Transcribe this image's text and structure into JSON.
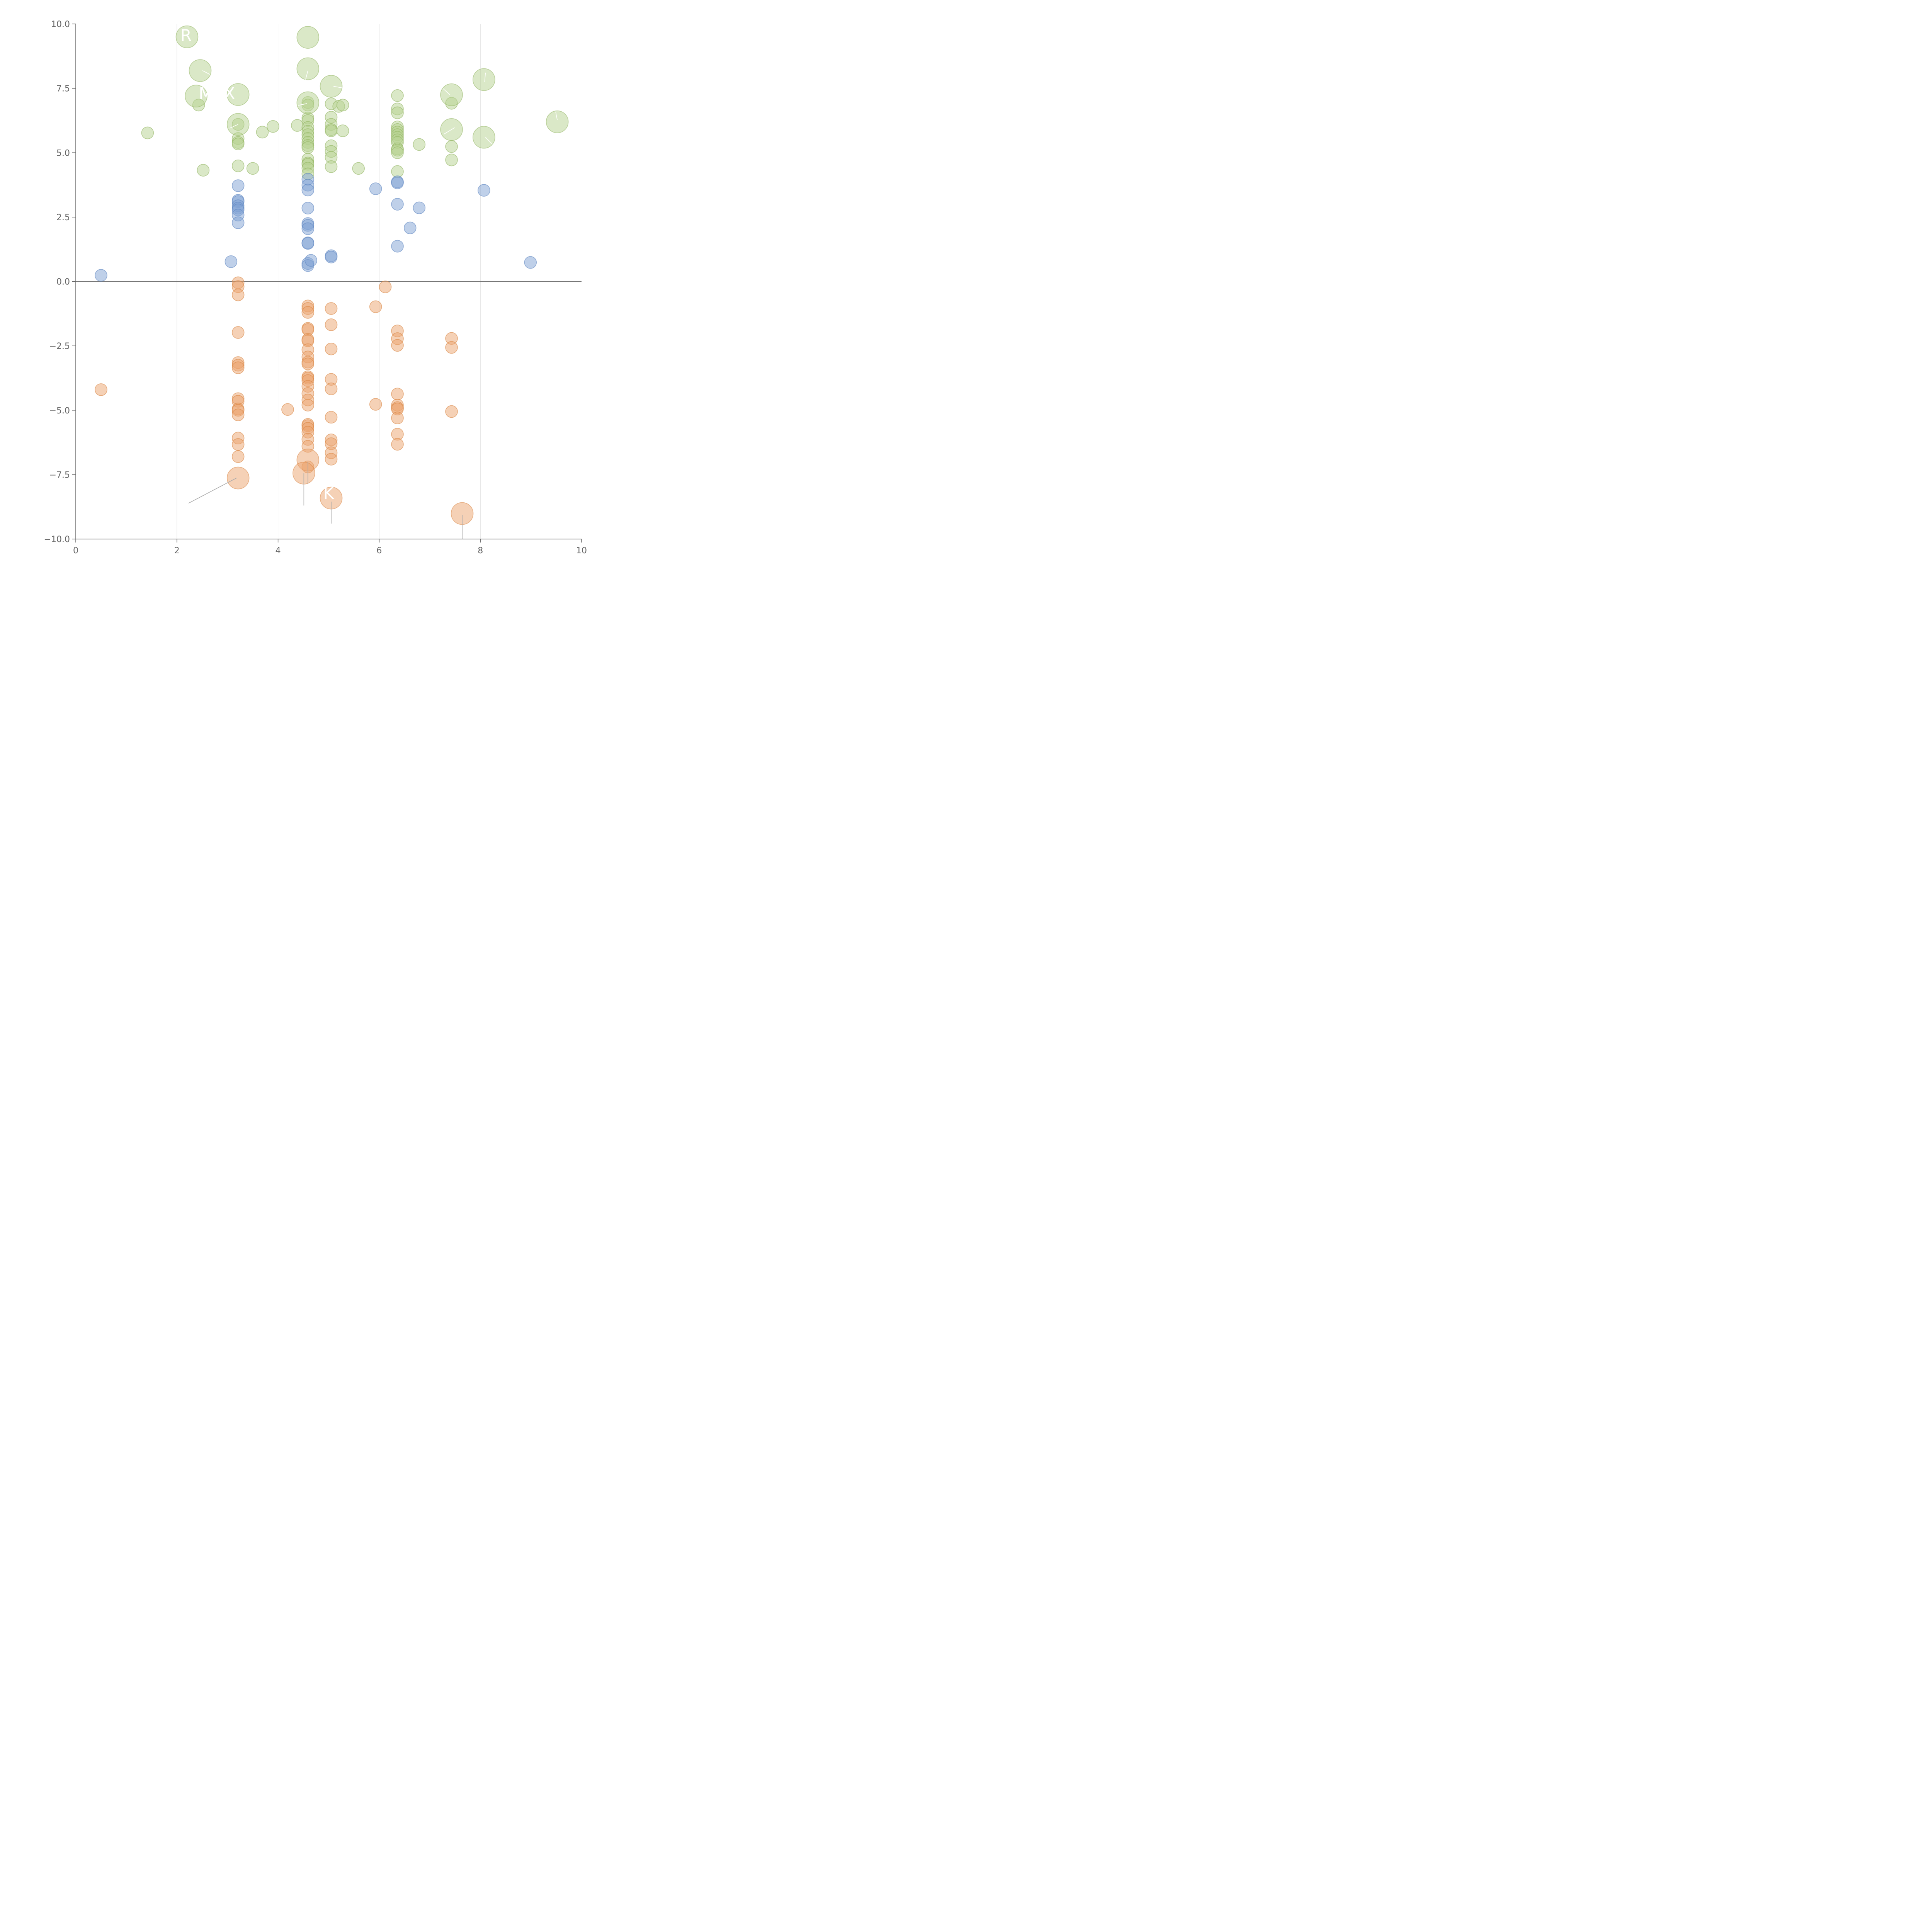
{
  "chart_data": {
    "type": "scatter",
    "title": "",
    "xlabel": "",
    "ylabel": "",
    "xlim": [
      0,
      10
    ],
    "ylim": [
      -10,
      10
    ],
    "x_ticks": [
      0,
      2,
      4,
      6,
      8,
      10
    ],
    "x_tick_labels": [
      "0",
      "2",
      "4",
      "6",
      "8",
      "10"
    ],
    "y_ticks": [
      -10,
      -7.5,
      -5,
      -2.5,
      0,
      2.5,
      5,
      7.5,
      10
    ],
    "y_tick_labels": [
      "−10.0",
      "−7.5",
      "−5.0",
      "−2.5",
      "0.0",
      "2.5",
      "5.0",
      "7.5",
      "10.0"
    ],
    "vertical_gridlines": [
      2,
      4,
      6,
      8
    ],
    "zero_line": 0,
    "colors": {
      "green_fill": "#b5d18f",
      "green_stroke": "#8fb35e",
      "blue_fill": "#7fa2d4",
      "blue_stroke": "#5b83bf",
      "orange_fill": "#eca46e",
      "orange_stroke": "#d9833f",
      "axis": "#666666",
      "grid": "#dddddd",
      "zero": "#777777",
      "label_line": "#aaaaaa",
      "label_text": "#ffffff"
    },
    "series": [
      {
        "name": "green",
        "points": [
          [
            1.42,
            5.77
          ],
          [
            2.52,
            4.32
          ],
          [
            2.43,
            6.85
          ],
          [
            3.21,
            6.1
          ],
          [
            3.21,
            5.55
          ],
          [
            3.21,
            5.4
          ],
          [
            3.21,
            5.34
          ],
          [
            3.21,
            4.49
          ],
          [
            3.5,
            4.39
          ],
          [
            3.69,
            5.8
          ],
          [
            3.9,
            6.02
          ],
          [
            4.38,
            6.06
          ],
          [
            4.59,
            6.95
          ],
          [
            4.59,
            6.85
          ],
          [
            4.59,
            6.35
          ],
          [
            4.59,
            6.25
          ],
          [
            4.59,
            5.98
          ],
          [
            4.59,
            5.83
          ],
          [
            4.59,
            5.7
          ],
          [
            4.59,
            5.55
          ],
          [
            4.59,
            5.4
          ],
          [
            4.59,
            5.28
          ],
          [
            4.59,
            5.2
          ],
          [
            4.59,
            4.75
          ],
          [
            4.59,
            4.6
          ],
          [
            4.59,
            4.55
          ],
          [
            4.59,
            4.4
          ],
          [
            4.59,
            4.18
          ],
          [
            5.05,
            6.9
          ],
          [
            5.05,
            6.38
          ],
          [
            5.05,
            6.1
          ],
          [
            5.05,
            5.9
          ],
          [
            5.05,
            5.85
          ],
          [
            5.05,
            5.27
          ],
          [
            5.05,
            5.05
          ],
          [
            5.05,
            4.82
          ],
          [
            5.05,
            4.46
          ],
          [
            5.2,
            6.8
          ],
          [
            5.28,
            6.85
          ],
          [
            5.28,
            5.85
          ],
          [
            5.59,
            4.39
          ],
          [
            6.36,
            7.22
          ],
          [
            6.36,
            6.7
          ],
          [
            6.36,
            6.55
          ],
          [
            6.36,
            6.0
          ],
          [
            6.36,
            5.9
          ],
          [
            6.36,
            5.8
          ],
          [
            6.36,
            5.7
          ],
          [
            6.36,
            5.6
          ],
          [
            6.36,
            5.5
          ],
          [
            6.36,
            5.4
          ],
          [
            6.36,
            5.15
          ],
          [
            6.36,
            5.1
          ],
          [
            6.36,
            5.0
          ],
          [
            6.36,
            4.27
          ],
          [
            6.79,
            5.32
          ],
          [
            7.43,
            6.92
          ],
          [
            7.43,
            5.24
          ],
          [
            7.43,
            4.72
          ]
        ],
        "large_points": [
          [
            2.2,
            9.5
          ],
          [
            2.46,
            8.19
          ],
          [
            2.38,
            7.2
          ],
          [
            3.21,
            7.26
          ],
          [
            3.21,
            6.1
          ],
          [
            4.59,
            9.48
          ],
          [
            4.59,
            8.26
          ],
          [
            4.59,
            6.94
          ],
          [
            5.05,
            7.58
          ],
          [
            7.43,
            7.25
          ],
          [
            7.43,
            5.9
          ],
          [
            8.07,
            7.84
          ],
          [
            8.07,
            5.6
          ],
          [
            9.52,
            6.2
          ]
        ]
      },
      {
        "name": "blue",
        "points": [
          [
            0.5,
            0.24
          ],
          [
            3.07,
            0.77
          ],
          [
            3.21,
            3.72
          ],
          [
            3.21,
            3.15
          ],
          [
            3.21,
            3.1
          ],
          [
            3.21,
            2.94
          ],
          [
            3.21,
            2.85
          ],
          [
            3.21,
            2.78
          ],
          [
            3.21,
            2.58
          ],
          [
            3.21,
            2.28
          ],
          [
            4.59,
            3.97
          ],
          [
            4.59,
            3.74
          ],
          [
            4.59,
            3.55
          ],
          [
            4.59,
            2.85
          ],
          [
            4.59,
            2.25
          ],
          [
            4.59,
            2.18
          ],
          [
            4.59,
            2.05
          ],
          [
            4.59,
            1.5
          ],
          [
            4.59,
            1.48
          ],
          [
            4.59,
            0.7
          ],
          [
            4.59,
            0.62
          ],
          [
            4.65,
            0.82
          ],
          [
            5.05,
            1.0
          ],
          [
            5.05,
            0.95
          ],
          [
            5.93,
            3.6
          ],
          [
            6.36,
            3.87
          ],
          [
            6.36,
            3.83
          ],
          [
            6.36,
            3.0
          ],
          [
            6.36,
            1.37
          ],
          [
            6.61,
            2.08
          ],
          [
            6.79,
            2.86
          ],
          [
            8.07,
            3.54
          ],
          [
            8.99,
            0.74
          ]
        ]
      },
      {
        "name": "orange",
        "points": [
          [
            0.5,
            -4.2
          ],
          [
            3.21,
            -0.05
          ],
          [
            3.21,
            -0.2
          ],
          [
            3.21,
            -0.52
          ],
          [
            3.21,
            -1.98
          ],
          [
            3.21,
            -3.15
          ],
          [
            3.21,
            -3.25
          ],
          [
            3.21,
            -3.35
          ],
          [
            3.21,
            -4.55
          ],
          [
            3.21,
            -4.65
          ],
          [
            3.21,
            -4.95
          ],
          [
            3.21,
            -5.0
          ],
          [
            3.21,
            -5.18
          ],
          [
            3.21,
            -6.08
          ],
          [
            3.21,
            -6.33
          ],
          [
            3.21,
            -6.8
          ],
          [
            4.19,
            -4.97
          ],
          [
            4.59,
            -0.95
          ],
          [
            4.59,
            -1.05
          ],
          [
            4.59,
            -1.2
          ],
          [
            4.59,
            -1.82
          ],
          [
            4.59,
            -1.87
          ],
          [
            4.59,
            -2.25
          ],
          [
            4.59,
            -2.3
          ],
          [
            4.59,
            -2.65
          ],
          [
            4.59,
            -2.93
          ],
          [
            4.59,
            -3.13
          ],
          [
            4.59,
            -3.2
          ],
          [
            4.59,
            -3.7
          ],
          [
            4.59,
            -3.75
          ],
          [
            4.59,
            -3.85
          ],
          [
            4.59,
            -4.07
          ],
          [
            4.59,
            -4.35
          ],
          [
            4.59,
            -4.6
          ],
          [
            4.59,
            -4.8
          ],
          [
            4.59,
            -5.55
          ],
          [
            4.59,
            -5.6
          ],
          [
            4.59,
            -5.7
          ],
          [
            4.59,
            -5.85
          ],
          [
            4.59,
            -6.13
          ],
          [
            4.59,
            -6.4
          ],
          [
            4.59,
            -7.2
          ],
          [
            5.05,
            -1.05
          ],
          [
            5.05,
            -1.68
          ],
          [
            5.05,
            -2.62
          ],
          [
            5.05,
            -3.8
          ],
          [
            5.05,
            -4.17
          ],
          [
            5.05,
            -5.27
          ],
          [
            5.05,
            -6.15
          ],
          [
            5.05,
            -6.3
          ],
          [
            5.05,
            -6.65
          ],
          [
            5.05,
            -6.9
          ],
          [
            5.93,
            -0.98
          ],
          [
            5.93,
            -4.77
          ],
          [
            6.12,
            -0.21
          ],
          [
            6.36,
            -1.92
          ],
          [
            6.36,
            -2.22
          ],
          [
            6.36,
            -2.48
          ],
          [
            6.36,
            -4.37
          ],
          [
            6.36,
            -4.8
          ],
          [
            6.36,
            -4.9
          ],
          [
            6.36,
            -4.95
          ],
          [
            6.36,
            -5.3
          ],
          [
            6.36,
            -5.93
          ],
          [
            6.36,
            -6.32
          ],
          [
            7.43,
            -2.21
          ],
          [
            7.43,
            -2.56
          ],
          [
            7.43,
            -5.05
          ]
        ],
        "large_points": [
          [
            3.21,
            -7.63
          ],
          [
            4.59,
            -6.93
          ],
          [
            4.51,
            -7.44
          ],
          [
            5.05,
            -8.41
          ],
          [
            7.64,
            -9.01
          ]
        ]
      }
    ],
    "bubble_labels": [
      "R",
      "M",
      "X",
      "K"
    ],
    "bubble_label_anchors": [
      [
        2.18,
        9.55
      ],
      [
        2.57,
        7.3
      ],
      [
        3.04,
        7.3
      ],
      [
        5.0,
        -8.23
      ]
    ]
  }
}
